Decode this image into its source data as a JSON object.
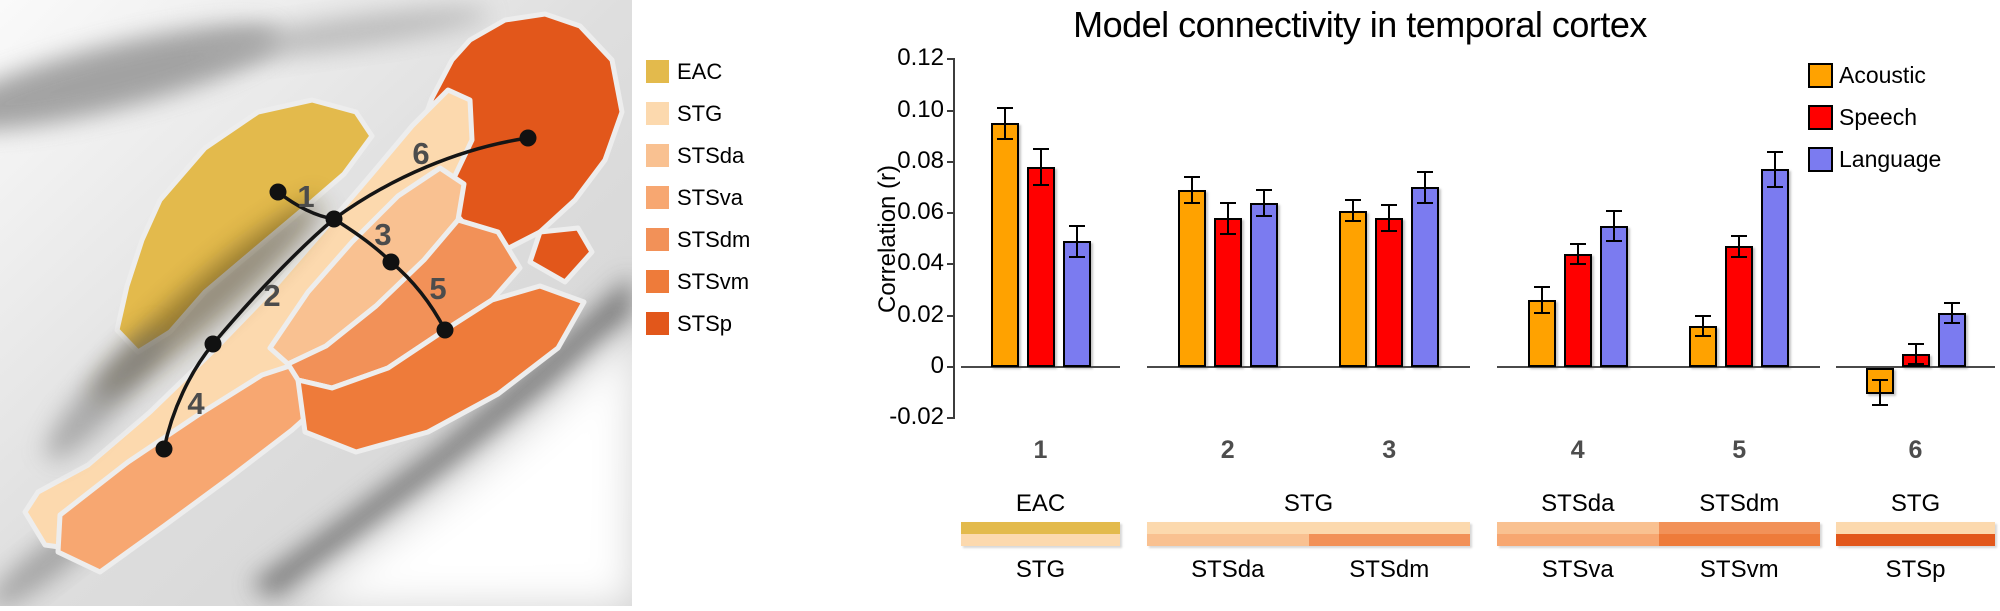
{
  "brain_panel": {
    "legend": [
      {
        "label": "EAC",
        "color": "#E3BA4C"
      },
      {
        "label": "STG",
        "color": "#FCD9AE"
      },
      {
        "label": "STSda",
        "color": "#F9C191"
      },
      {
        "label": "STSva",
        "color": "#F7A771"
      },
      {
        "label": "STSdm",
        "color": "#F29158"
      },
      {
        "label": "STSvm",
        "color": "#EE7B3A"
      },
      {
        "label": "STSp",
        "color": "#E2571B"
      }
    ],
    "connection_labels": [
      "1",
      "2",
      "3",
      "4",
      "5",
      "6"
    ]
  },
  "chart": {
    "title": "Model connectivity in temporal cortex",
    "ylabel": "Correlation (r)"
  },
  "chart_data": {
    "type": "bar",
    "title": "Model connectivity in temporal cortex",
    "ylabel": "Correlation (r)",
    "ylim": [
      -0.02,
      0.12
    ],
    "grid": false,
    "legend_position": "top-right",
    "categories": [
      "1",
      "2",
      "3",
      "4",
      "5",
      "6"
    ],
    "series": [
      {
        "name": "Acoustic",
        "color": "#FFA200",
        "values": [
          0.095,
          0.069,
          0.061,
          0.026,
          0.016,
          -0.01
        ],
        "errors": [
          0.006,
          0.005,
          0.004,
          0.005,
          0.004,
          0.005
        ]
      },
      {
        "name": "Speech",
        "color": "#FF0000",
        "values": [
          0.078,
          0.058,
          0.058,
          0.044,
          0.047,
          0.005
        ],
        "errors": [
          0.007,
          0.006,
          0.005,
          0.004,
          0.004,
          0.004
        ]
      },
      {
        "name": "Language",
        "color": "#7B7BF0",
        "values": [
          0.049,
          0.064,
          0.07,
          0.055,
          0.077,
          0.021
        ],
        "errors": [
          0.006,
          0.005,
          0.006,
          0.006,
          0.007,
          0.004
        ]
      }
    ],
    "yticks": [
      {
        "label": "0.12",
        "value": 0.12
      },
      {
        "label": "0.10",
        "value": 0.1
      },
      {
        "label": "0.08",
        "value": 0.08
      },
      {
        "label": "0.06",
        "value": 0.06
      },
      {
        "label": "0.04",
        "value": 0.04
      },
      {
        "label": "0.02",
        "value": 0.02
      },
      {
        "label": "0",
        "value": 0.0
      },
      {
        "label": "-0.02",
        "value": -0.02
      }
    ],
    "panels": [
      {
        "groups": [
          "1"
        ],
        "top_labels": [
          "EAC"
        ],
        "band_top": [
          "EAC"
        ],
        "band_bottom": [
          "STG"
        ],
        "bottom_labels": [
          "STG"
        ]
      },
      {
        "groups": [
          "2",
          "3"
        ],
        "top_labels": [
          "STG"
        ],
        "band_top": [
          "STG"
        ],
        "band_bottom": [
          "STSda",
          "STSdm"
        ],
        "bottom_labels": [
          "STSda",
          "STSdm"
        ]
      },
      {
        "groups": [
          "4",
          "5"
        ],
        "top_labels": [
          "STSda",
          "STSdm"
        ],
        "band_top": [
          "STSda",
          "STSdm"
        ],
        "band_bottom": [
          "STSva",
          "STSvm"
        ],
        "bottom_labels": [
          "STSva",
          "STSvm"
        ]
      },
      {
        "groups": [
          "6"
        ],
        "top_labels": [
          "STG"
        ],
        "band_top": [
          "STG"
        ],
        "band_bottom": [
          "STSp"
        ],
        "bottom_labels": [
          "STSp"
        ]
      }
    ],
    "region_colors": {
      "EAC": "#E3BA4C",
      "STG": "#FCD9AE",
      "STSda": "#F9C191",
      "STSva": "#F7A771",
      "STSdm": "#F29158",
      "STSvm": "#EE7B3A",
      "STSp": "#E2571B"
    }
  }
}
